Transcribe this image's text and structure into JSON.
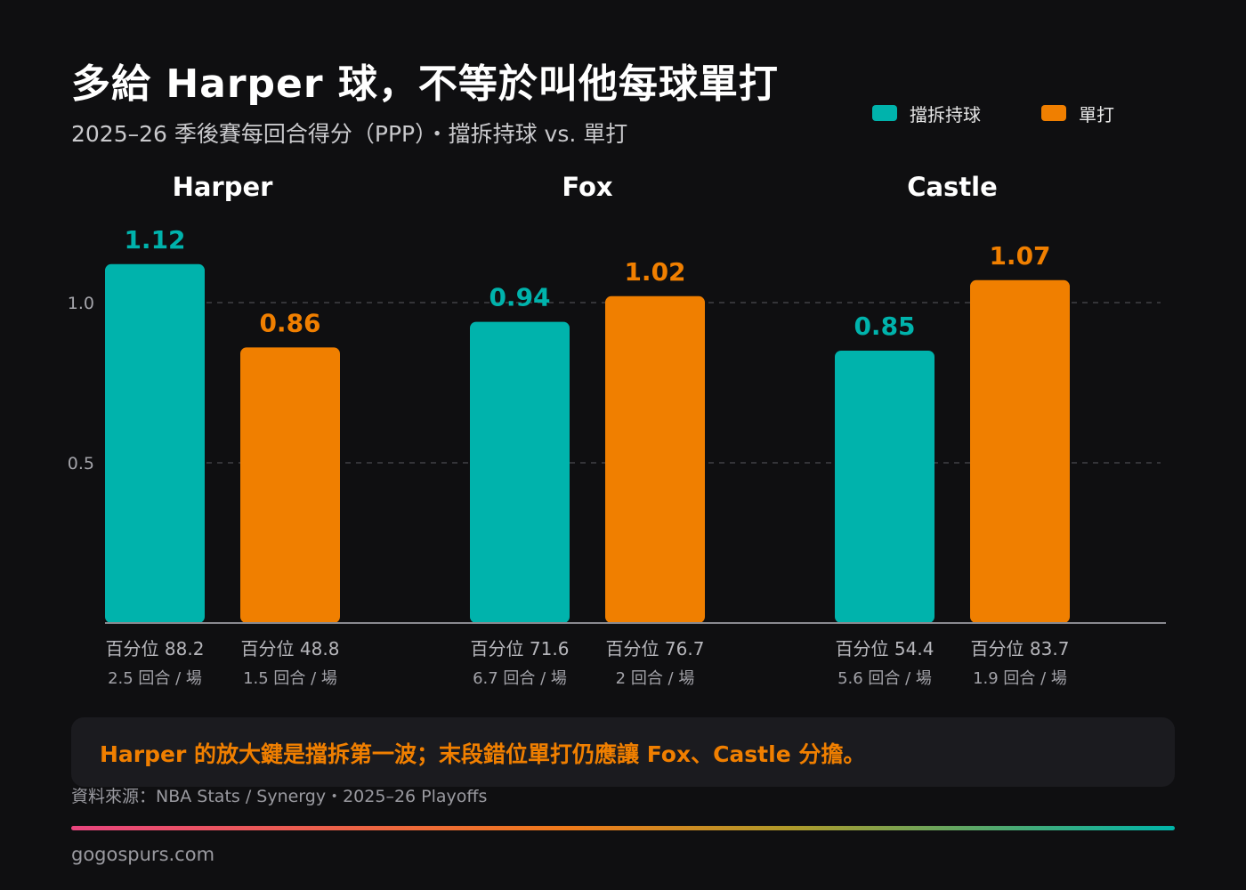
{
  "title": "多給 Harper 球，不等於叫他每球單打",
  "subtitle": "2025–26 季後賽每回合得分（PPP）・擋拆持球 vs. 單打",
  "legend": [
    {
      "label": "擋拆持球",
      "color": "#00b3ac"
    },
    {
      "label": "單打",
      "color": "#f07f00"
    }
  ],
  "chart_data": {
    "type": "bar",
    "categories": [
      "Harper",
      "Fox",
      "Castle"
    ],
    "series": [
      {
        "name": "擋拆持球",
        "color": "#00b3ac",
        "values": [
          1.12,
          0.94,
          0.85
        ]
      },
      {
        "name": "單打",
        "color": "#f07f00",
        "values": [
          0.86,
          1.02,
          1.07
        ]
      }
    ],
    "value_labels": [
      [
        "1.12",
        "0.94",
        "0.85"
      ],
      [
        "0.86",
        "1.02",
        "1.07"
      ]
    ],
    "ylim": [
      0,
      1.2
    ],
    "yticks": [
      0.5,
      1.0
    ],
    "ytick_labels": [
      "0.5",
      "1.0"
    ],
    "grid": "dashed horizontal",
    "legend_position": "top-right",
    "bar_notes": [
      [
        {
          "percentile": "百分位 88.2",
          "possessions": "2.5 回合 / 場"
        },
        {
          "percentile": "百分位 71.6",
          "possessions": "6.7 回合 / 場"
        },
        {
          "percentile": "百分位 54.4",
          "possessions": "5.6 回合 / 場"
        }
      ],
      [
        {
          "percentile": "百分位 48.8",
          "possessions": "1.5 回合 / 場"
        },
        {
          "percentile": "百分位 76.7",
          "possessions": "2 回合 / 場"
        },
        {
          "percentile": "百分位 83.7",
          "possessions": "1.9 回合 / 場"
        }
      ]
    ]
  },
  "insight": "Harper 的放大鍵是擋拆第一波；末段錯位單打仍應讓 Fox、Castle 分擔。",
  "source": "資料來源：NBA Stats / Synergy・2025–26 Playoffs",
  "brand": "gogospurs.com",
  "colors": {
    "background": "#0f0f11",
    "pnr": "#00b3ac",
    "iso": "#f07f00",
    "insight_text": "#f07f00",
    "panel": "#1b1b1f"
  }
}
